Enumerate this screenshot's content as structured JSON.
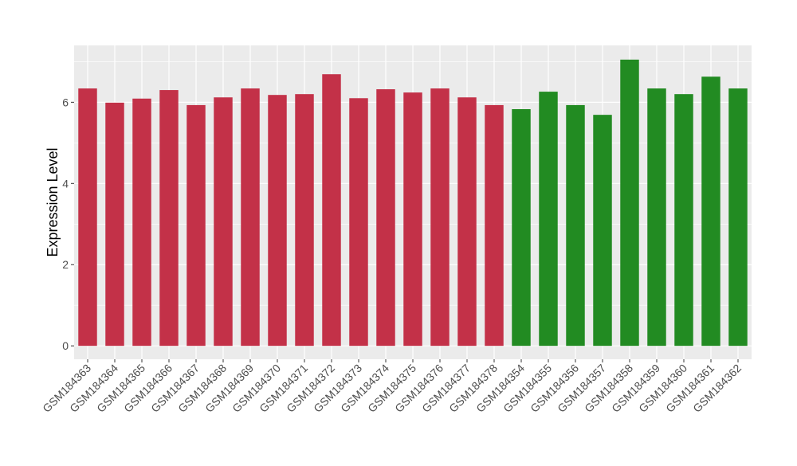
{
  "chart_data": {
    "type": "bar",
    "title": "",
    "xlabel": "",
    "ylabel": "Expression Level",
    "ylim": [
      -0.33,
      7.4
    ],
    "yticks": [
      0,
      2,
      4,
      6
    ],
    "grid": true,
    "legend": "none",
    "colors": {
      "group1": "#C33148",
      "group2": "#228B22",
      "panel": "#EBEBEB",
      "grid": "#FFFFFF"
    },
    "categories": [
      "GSM184363",
      "GSM184364",
      "GSM184365",
      "GSM184366",
      "GSM184367",
      "GSM184368",
      "GSM184369",
      "GSM184370",
      "GSM184371",
      "GSM184372",
      "GSM184373",
      "GSM184374",
      "GSM184375",
      "GSM184376",
      "GSM184377",
      "GSM184378",
      "GSM184354",
      "GSM184355",
      "GSM184356",
      "GSM184357",
      "GSM184358",
      "GSM184359",
      "GSM184360",
      "GSM184361",
      "GSM184362"
    ],
    "values": [
      6.34,
      5.99,
      6.09,
      6.3,
      5.93,
      6.12,
      6.34,
      6.18,
      6.2,
      6.69,
      6.1,
      6.32,
      6.24,
      6.34,
      6.12,
      5.93,
      5.83,
      6.26,
      5.93,
      5.69,
      7.05,
      6.34,
      6.2,
      6.63,
      6.34
    ],
    "groups": [
      "group1",
      "group1",
      "group1",
      "group1",
      "group1",
      "group1",
      "group1",
      "group1",
      "group1",
      "group1",
      "group1",
      "group1",
      "group1",
      "group1",
      "group1",
      "group1",
      "group2",
      "group2",
      "group2",
      "group2",
      "group2",
      "group2",
      "group2",
      "group2",
      "group2"
    ]
  }
}
